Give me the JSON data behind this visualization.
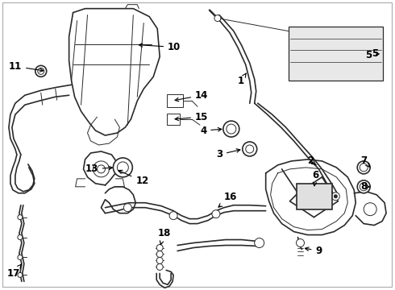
{
  "bg_color": "#ffffff",
  "line_color": "#2a2a2a",
  "label_color": "#000000",
  "border_color": "#aaaaaa",
  "figsize": [
    4.9,
    3.6
  ],
  "dpi": 100,
  "xlim": [
    0,
    490
  ],
  "ylim": [
    0,
    360
  ]
}
